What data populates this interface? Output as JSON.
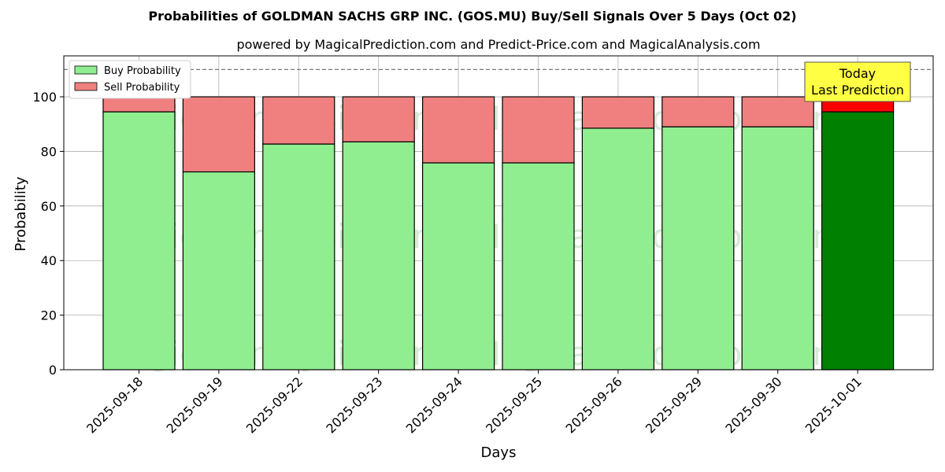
{
  "chart_data": {
    "type": "bar",
    "title": "Probabilities of GOLDMAN SACHS GRP INC. (GOS.MU) Buy/Sell Signals Over 5 Days (Oct 02)",
    "subtitle": "powered by MagicalPrediction.com and Predict-Price.com and MagicalAnalysis.com",
    "xlabel": "Days",
    "ylabel": "Probability",
    "ylim": [
      0,
      115
    ],
    "yticks": [
      0,
      20,
      40,
      60,
      80,
      100
    ],
    "grid": true,
    "stacked": true,
    "categories": [
      "2025-09-18",
      "2025-09-19",
      "2025-09-22",
      "2025-09-23",
      "2025-09-24",
      "2025-09-25",
      "2025-09-26",
      "2025-09-29",
      "2025-09-30",
      "2025-10-01"
    ],
    "series": [
      {
        "name": "Buy Probability",
        "values": [
          94.5,
          72.5,
          82.7,
          83.5,
          75.8,
          75.8,
          88.5,
          89.0,
          89.0,
          94.5
        ],
        "color": "#90ee90",
        "last_color": "#008000"
      },
      {
        "name": "Sell Probability",
        "values": [
          5.5,
          27.5,
          17.3,
          16.5,
          24.2,
          24.2,
          11.5,
          11.0,
          11.0,
          5.5
        ],
        "color": "#f08080",
        "last_color": "#ff0000"
      }
    ],
    "reference_line": {
      "y": 110,
      "style": "dashed"
    },
    "legend": {
      "placement": "top-left"
    },
    "annotation": {
      "lines": [
        "Today",
        "Last Prediction"
      ],
      "background": "#ffff44"
    },
    "watermarks": [
      "MagicalAnalysis.com",
      "MagicalPrediction.com",
      "MagicalAnalysis.com",
      "MagicalPrediction.com",
      "MagicalAnalysis.com",
      "MagicalPrediction.com"
    ]
  }
}
